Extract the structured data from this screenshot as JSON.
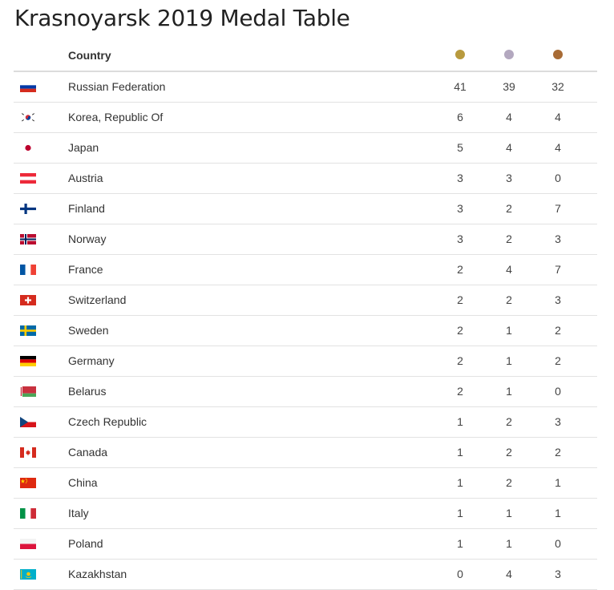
{
  "title": "Krasnoyarsk 2019 Medal Table",
  "header": {
    "country_label": "Country",
    "medals": [
      {
        "name": "gold-medal-icon",
        "color": "#b89a3e"
      },
      {
        "name": "silver-medal-icon",
        "color": "#b3a8bf"
      },
      {
        "name": "bronze-medal-icon",
        "color": "#a86b35"
      }
    ]
  },
  "rows": [
    {
      "country": "Russian Federation",
      "flag": "russia-flag-icon",
      "gold": "41",
      "silver": "39",
      "bronze": "32"
    },
    {
      "country": "Korea, Republic Of",
      "flag": "korea-flag-icon",
      "gold": "6",
      "silver": "4",
      "bronze": "4"
    },
    {
      "country": "Japan",
      "flag": "japan-flag-icon",
      "gold": "5",
      "silver": "4",
      "bronze": "4"
    },
    {
      "country": "Austria",
      "flag": "austria-flag-icon",
      "gold": "3",
      "silver": "3",
      "bronze": "0"
    },
    {
      "country": "Finland",
      "flag": "finland-flag-icon",
      "gold": "3",
      "silver": "2",
      "bronze": "7"
    },
    {
      "country": "Norway",
      "flag": "norway-flag-icon",
      "gold": "3",
      "silver": "2",
      "bronze": "3"
    },
    {
      "country": "France",
      "flag": "france-flag-icon",
      "gold": "2",
      "silver": "4",
      "bronze": "7"
    },
    {
      "country": "Switzerland",
      "flag": "switzerland-flag-icon",
      "gold": "2",
      "silver": "2",
      "bronze": "3"
    },
    {
      "country": "Sweden",
      "flag": "sweden-flag-icon",
      "gold": "2",
      "silver": "1",
      "bronze": "2"
    },
    {
      "country": "Germany",
      "flag": "germany-flag-icon",
      "gold": "2",
      "silver": "1",
      "bronze": "2"
    },
    {
      "country": "Belarus",
      "flag": "belarus-flag-icon",
      "gold": "2",
      "silver": "1",
      "bronze": "0"
    },
    {
      "country": "Czech Republic",
      "flag": "czech-flag-icon",
      "gold": "1",
      "silver": "2",
      "bronze": "3"
    },
    {
      "country": "Canada",
      "flag": "canada-flag-icon",
      "gold": "1",
      "silver": "2",
      "bronze": "2"
    },
    {
      "country": "China",
      "flag": "china-flag-icon",
      "gold": "1",
      "silver": "2",
      "bronze": "1"
    },
    {
      "country": "Italy",
      "flag": "italy-flag-icon",
      "gold": "1",
      "silver": "1",
      "bronze": "1"
    },
    {
      "country": "Poland",
      "flag": "poland-flag-icon",
      "gold": "1",
      "silver": "1",
      "bronze": "0"
    },
    {
      "country": "Kazakhstan",
      "flag": "kazakhstan-flag-icon",
      "gold": "0",
      "silver": "4",
      "bronze": "3"
    }
  ]
}
